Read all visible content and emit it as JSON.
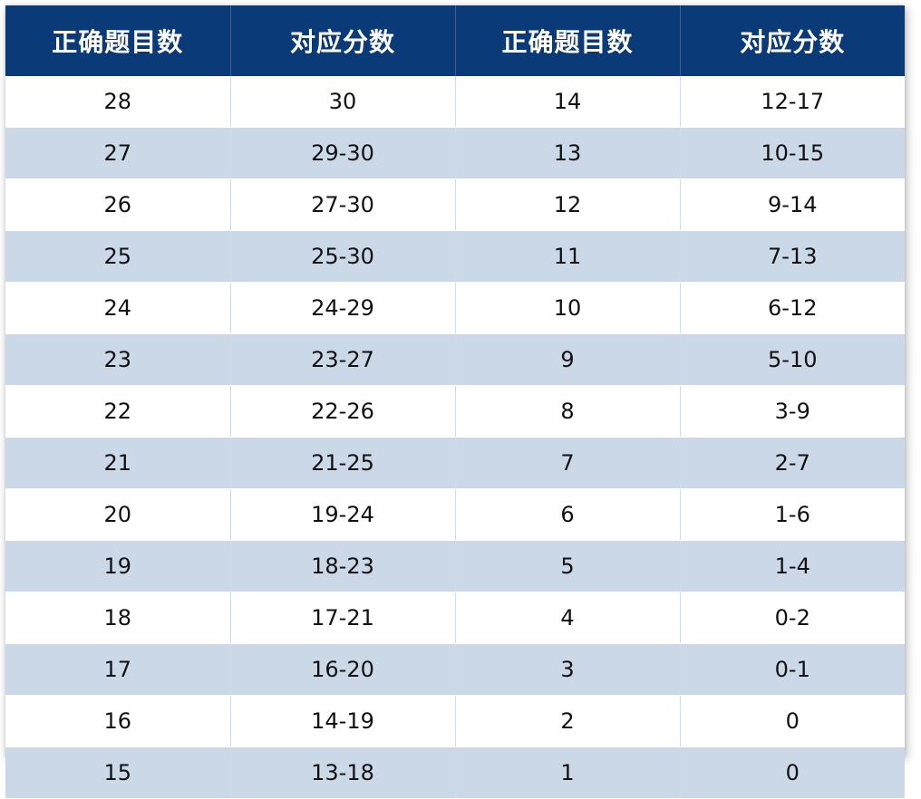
{
  "colors": {
    "header_bg": "#0b3a78",
    "header_text": "#ffffff",
    "row_alt_bg": "#cbd8e8",
    "row_bg": "#ffffff"
  },
  "table": {
    "headers": [
      "正确题目数",
      "对应分数",
      "正确题目数",
      "对应分数"
    ],
    "rows": [
      [
        "28",
        "30",
        "14",
        "12-17"
      ],
      [
        "27",
        "29-30",
        "13",
        "10-15"
      ],
      [
        "26",
        "27-30",
        "12",
        "9-14"
      ],
      [
        "25",
        "25-30",
        "11",
        "7-13"
      ],
      [
        "24",
        "24-29",
        "10",
        "6-12"
      ],
      [
        "23",
        "23-27",
        "9",
        "5-10"
      ],
      [
        "22",
        "22-26",
        "8",
        "3-9"
      ],
      [
        "21",
        "21-25",
        "7",
        "2-7"
      ],
      [
        "20",
        "19-24",
        "6",
        "1-6"
      ],
      [
        "19",
        "18-23",
        "5",
        "1-4"
      ],
      [
        "18",
        "17-21",
        "4",
        "0-2"
      ],
      [
        "17",
        "16-20",
        "3",
        "0-1"
      ],
      [
        "16",
        "14-19",
        "2",
        "0"
      ],
      [
        "15",
        "13-18",
        "1",
        "0"
      ]
    ]
  }
}
